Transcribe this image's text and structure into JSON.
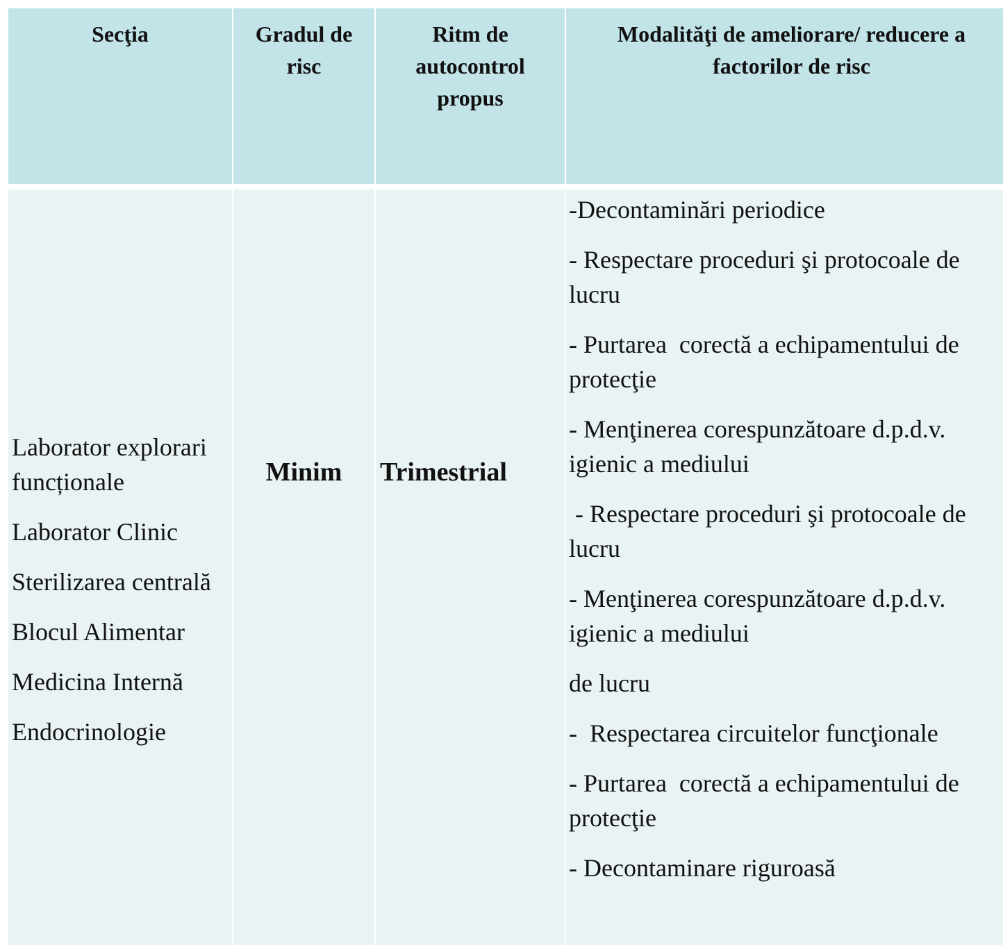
{
  "table": {
    "header": [
      "Secţia",
      "Gradul de risc",
      "Ritm de autocontrol propus",
      "Modalităţi de ameliorare/ reducere a factorilor de risc"
    ],
    "sections": [
      "Laborator explorari funcționale",
      "Laborator Clinic",
      "Sterilizarea centrală",
      "Blocul Alimentar",
      "Medicina Internă",
      "Endocrinologie"
    ],
    "risk": "Minim",
    "rhythm": "Trimestrial",
    "measures": [
      "-Decontaminări periodice",
      "- Respectare proceduri şi protocoale de lucru",
      "- Purtarea  corectă a echipamentului de protecţie",
      "- Menţinerea corespunzătoare d.p.d.v. igienic a mediului",
      " - Respectare proceduri şi protocoale de lucru",
      "- Menţinerea corespunzătoare d.p.d.v. igienic a mediului",
      "de lucru",
      "-  Respectarea circuitelor funcţionale",
      "- Purtarea  corectă a echipamentului de protecţie",
      "- Decontaminare riguroasă"
    ]
  }
}
